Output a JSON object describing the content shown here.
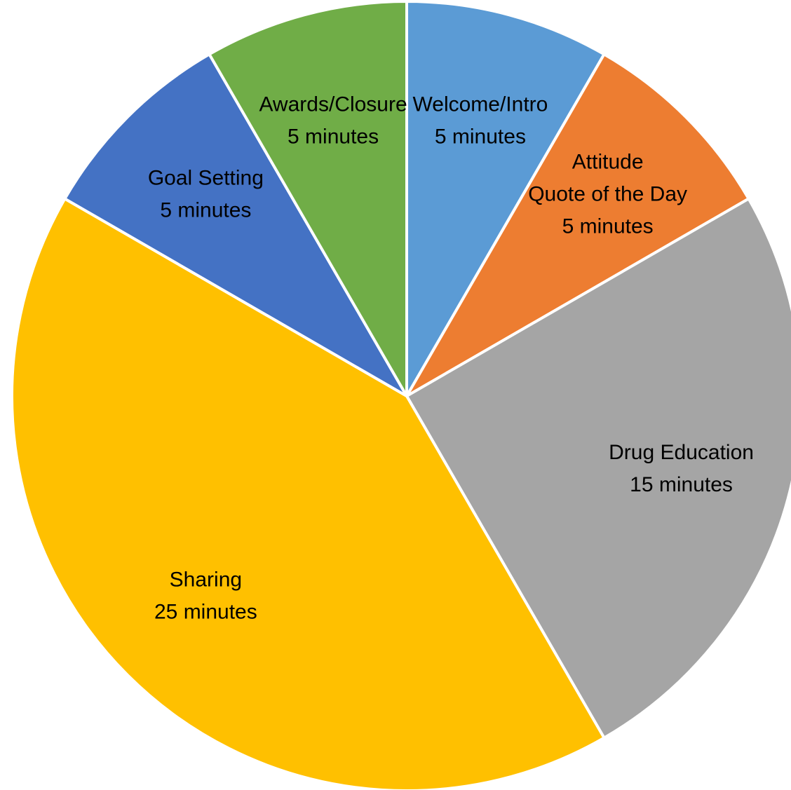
{
  "chart_data": {
    "type": "pie",
    "title": "",
    "start_angle_deg": 0,
    "direction": "clockwise",
    "slices": [
      {
        "label_lines": [
          "Welcome/Intro"
        ],
        "value_text": "5 minutes",
        "value": 5,
        "color": "#5B9BD5"
      },
      {
        "label_lines": [
          "Attitude",
          "Quote of the Day"
        ],
        "value_text": "5 minutes",
        "value": 5,
        "color": "#ED7D31"
      },
      {
        "label_lines": [
          "Drug Education"
        ],
        "value_text": "15 minutes",
        "value": 15,
        "color": "#A5A5A5"
      },
      {
        "label_lines": [
          "Sharing"
        ],
        "value_text": "25 minutes",
        "value": 25,
        "color": "#FFC000"
      },
      {
        "label_lines": [
          "Goal Setting"
        ],
        "value_text": "5 minutes",
        "value": 5,
        "color": "#4472C4"
      },
      {
        "label_lines": [
          "Awards/Closure"
        ],
        "value_text": "5 minutes",
        "value": 5,
        "color": "#70AD47"
      }
    ]
  }
}
